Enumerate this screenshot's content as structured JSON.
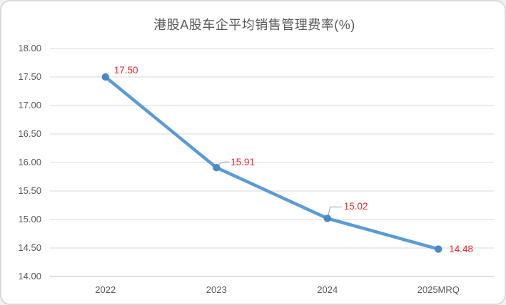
{
  "chart_data": {
    "type": "line",
    "title": "港股A股车企平均销售管理费率(%)",
    "categories": [
      "2022",
      "2023",
      "2024",
      "2025MRQ"
    ],
    "values": [
      17.5,
      15.91,
      15.02,
      14.48
    ],
    "point_labels": [
      "17.50",
      "15.91",
      "15.02",
      "14.48"
    ],
    "xlabel": "",
    "ylabel": "",
    "ylim": [
      14.0,
      18.0
    ],
    "ytick_step": 0.5,
    "ytick_labels": [
      "18.00",
      "17.50",
      "17.00",
      "16.50",
      "16.00",
      "15.50",
      "15.00",
      "14.50",
      "14.00"
    ],
    "grid": true,
    "legend_position": "none",
    "colors": {
      "line": "#5b9bd5",
      "marker": "#4a89c8",
      "data_label": "#e22a33",
      "axis_text": "#595959",
      "title_text": "#595959",
      "gridline": "#d9d9d9",
      "axis_line": "#bfbfbf",
      "leader_line": "#9e9e9e",
      "chart_border": "#d9d9d9",
      "background": "#ffffff"
    }
  }
}
